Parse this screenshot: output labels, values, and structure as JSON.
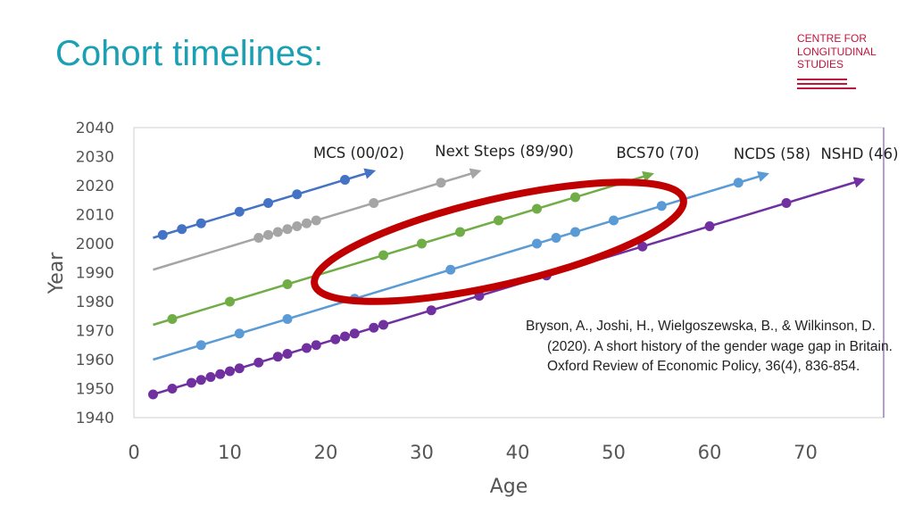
{
  "slide": {
    "title": "Cohort timelines:",
    "logo_lines": [
      "CENTRE FOR",
      "LONGITUDINAL",
      "STUDIES"
    ],
    "citation": "Bryson, A., Joshi, H., Wielgoszewska, B., & Wilkinson, D. (2020). A short history of the gender wage gap in Britain. Oxford Review of Economic Policy, 36(4), 836-854.",
    "colors": {
      "title": "#1a9fb3",
      "brand": "#c0143c"
    }
  },
  "chart_data": {
    "type": "line",
    "xlabel": "Age",
    "ylabel": "Year",
    "xlim": [
      0,
      78
    ],
    "ylim": [
      1940,
      2040
    ],
    "xticks": [
      0,
      10,
      20,
      30,
      40,
      50,
      60,
      70
    ],
    "yticks": [
      1940,
      1950,
      1960,
      1970,
      1980,
      1990,
      2000,
      2010,
      2020,
      2030,
      2040
    ],
    "series": [
      {
        "name": "MCS (00/02)",
        "color": "#4472c4",
        "line_x": [
          2,
          22
        ],
        "points": [
          3,
          5,
          7,
          11,
          14,
          17,
          22
        ],
        "base_year": 2000,
        "arrow_to": 25
      },
      {
        "name": "Next Steps (89/90)",
        "color": "#a5a5a5",
        "line_x": [
          2,
          32
        ],
        "points": [
          13,
          14,
          15,
          16,
          17,
          18,
          19,
          25,
          32
        ],
        "base_year": 1989,
        "arrow_to": 36
      },
      {
        "name": "BCS70 (70)",
        "color": "#70ad47",
        "line_x": [
          2,
          52
        ],
        "points": [
          4,
          10,
          16,
          26,
          30,
          34,
          38,
          42,
          46
        ],
        "base_year": 1970,
        "arrow_to": 54
      },
      {
        "name": "NCDS (58)",
        "color": "#5b9bd5",
        "line_x": [
          2,
          63
        ],
        "points": [
          7,
          11,
          16,
          23,
          33,
          42,
          44,
          46,
          50,
          55,
          63
        ],
        "base_year": 1958,
        "arrow_to": 66
      },
      {
        "name": "NSHD (46)",
        "color": "#7030a0",
        "line_x": [
          2,
          68
        ],
        "points": [
          2,
          4,
          6,
          7,
          8,
          9,
          10,
          11,
          13,
          15,
          16,
          18,
          19,
          21,
          22,
          23,
          25,
          26,
          31,
          36,
          43,
          53,
          60,
          68
        ],
        "base_year": 1946,
        "arrow_to": 76
      }
    ],
    "annotation": {
      "type": "ellipse",
      "color": "#c00000",
      "note": "highlights mid-life sweeps of BCS70 and NCDS"
    }
  }
}
